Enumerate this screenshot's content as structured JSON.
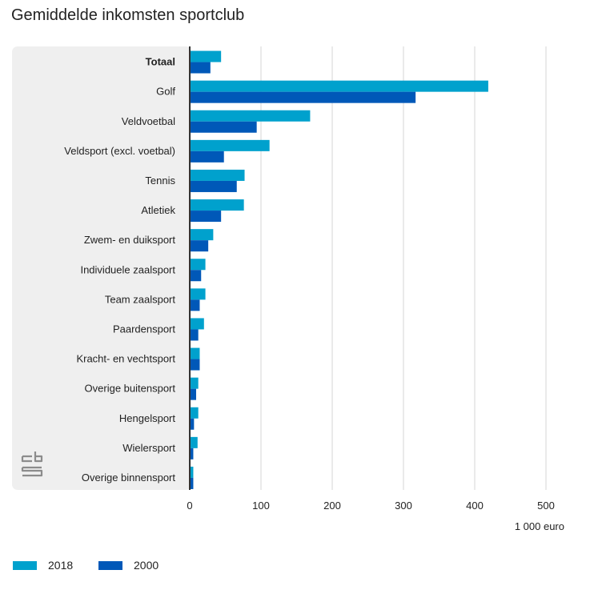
{
  "title": "Gemiddelde inkomsten sportclub",
  "chart_data": {
    "type": "bar",
    "orientation": "horizontal",
    "title": "Gemiddelde inkomsten sportclub",
    "xlabel": "1 000 euro",
    "xlim": [
      0,
      500
    ],
    "xticks": [
      0,
      100,
      200,
      300,
      400,
      500
    ],
    "grid": true,
    "legend_position": "bottom-left",
    "categories": [
      "Totaal",
      "Golf",
      "Veldvoetbal",
      "Veldsport (excl. voetbal)",
      "Tennis",
      "Atletiek",
      "Zwem- en duiksport",
      "Individuele zaalsport",
      "Team zaalsport",
      "Paardensport",
      "Kracht- en vechtsport",
      "Overige buitensport",
      "Hengelsport",
      "Wielersport",
      "Overige binnensport"
    ],
    "bold_categories": [
      "Totaal"
    ],
    "series": [
      {
        "name": "2018",
        "color": "#00a1cd",
        "values": [
          44,
          419,
          169,
          112,
          77,
          76,
          33,
          22,
          22,
          20,
          14,
          12,
          12,
          11,
          5
        ]
      },
      {
        "name": "2000",
        "color": "#0058b8",
        "values": [
          29,
          317,
          94,
          48,
          66,
          44,
          26,
          16,
          14,
          12,
          14,
          9,
          6,
          5,
          5
        ]
      }
    ]
  },
  "colors": {
    "panel": "#efefef",
    "grid": "#d6d6d6",
    "axis": "#333333"
  },
  "logo_icon": "cbs-logo-icon"
}
